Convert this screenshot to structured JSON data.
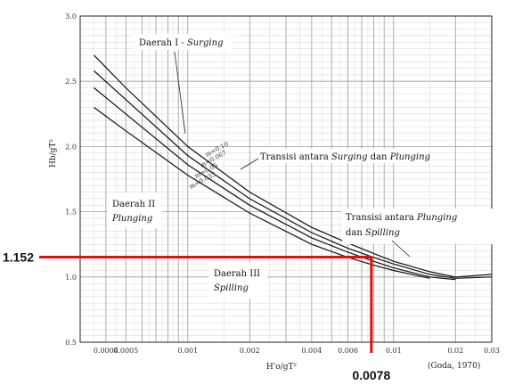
{
  "chart_data": {
    "type": "line",
    "source_credit": "(Goda, 1970)",
    "xscale": "log",
    "xlim": [
      0.0003,
      0.03
    ],
    "ylim": [
      0.5,
      3.0
    ],
    "xticks": [
      "0.0004",
      "0.0005",
      "0.001",
      "0.002",
      "0.004",
      "0.006",
      "0.01",
      "0.02",
      "0.03"
    ],
    "yticks": [
      "0.5",
      "1.0",
      "1.5",
      "2.0",
      "2.5",
      "3.0"
    ],
    "ylabel_symbol": "Hb/gT²",
    "xlabel_symbol": "H'o/gT²",
    "grid": true,
    "regions": [
      {
        "name": "Daerah I - ",
        "name_italic": "Surging"
      },
      {
        "name": "Daerah II",
        "name_italic": "Plunging"
      },
      {
        "name": "Daerah III",
        "name_italic": "Spilling"
      }
    ],
    "transitions": [
      {
        "text": "Transisi antara ",
        "italic1": "Surging",
        "mid": " dan ",
        "italic2": "Plunging"
      },
      {
        "text": "Transisi antara ",
        "italic1": "Plunging",
        "line2": "dan ",
        "italic2": "Spilling"
      }
    ],
    "slope_labels": [
      "m=0.10",
      "m=0.067",
      "m=0.05",
      "m=0.033"
    ],
    "series": [
      {
        "name": "",
        "x": [
          0.00035,
          0.0005,
          0.001,
          0.002,
          0.004,
          0.006,
          0.008,
          0.01,
          0.015,
          0.02,
          0.03
        ],
        "y": [
          2.7,
          2.45,
          2.0,
          1.65,
          1.38,
          1.26,
          1.18,
          1.12,
          1.04,
          1.0,
          1.02
        ]
      },
      {
        "name": "",
        "x": [
          0.00035,
          0.0005,
          0.001,
          0.002,
          0.004,
          0.006,
          0.008,
          0.01,
          0.015,
          0.02,
          0.03
        ],
        "y": [
          2.58,
          2.36,
          1.93,
          1.6,
          1.34,
          1.22,
          1.15,
          1.1,
          1.02,
          0.99,
          1.0
        ]
      },
      {
        "name": "",
        "x": [
          0.00035,
          0.0005,
          0.001,
          0.002,
          0.004,
          0.006,
          0.008,
          0.01,
          0.015,
          0.02
        ],
        "y": [
          2.45,
          2.25,
          1.86,
          1.55,
          1.3,
          1.19,
          1.12,
          1.07,
          1.0,
          0.98
        ]
      },
      {
        "name": "",
        "x": [
          0.00035,
          0.0005,
          0.001,
          0.002,
          0.004,
          0.006,
          0.008,
          0.01,
          0.015
        ],
        "y": [
          2.3,
          2.12,
          1.78,
          1.49,
          1.25,
          1.15,
          1.09,
          1.05,
          0.99
        ]
      }
    ],
    "reading": {
      "x": 0.0078,
      "y": 1.152,
      "x_label": "0.0078",
      "y_label": "1.152",
      "color": "#e01010"
    }
  }
}
